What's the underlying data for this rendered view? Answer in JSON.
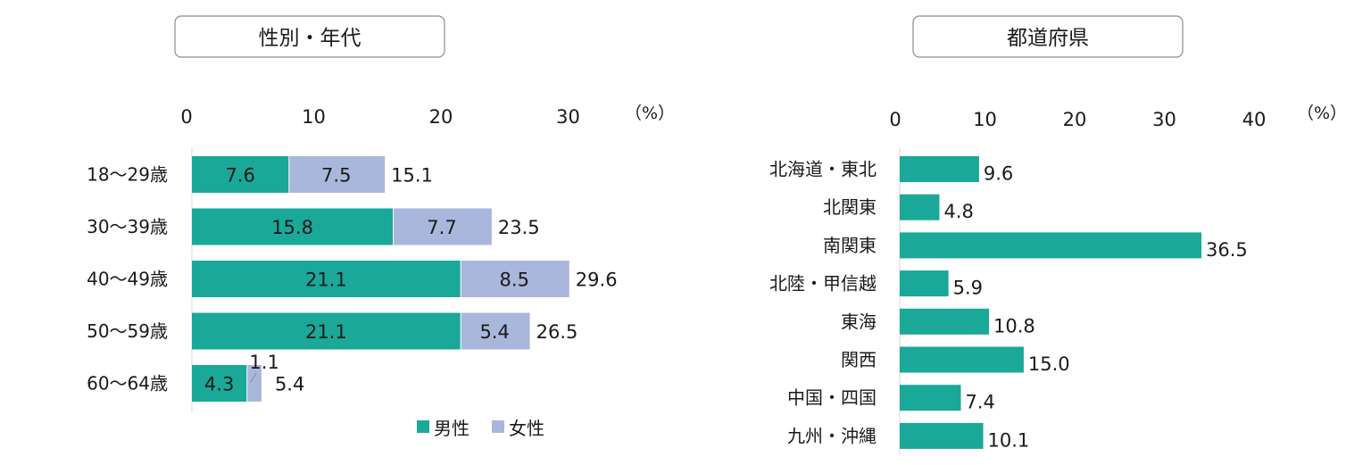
{
  "colors": {
    "male": "#1aa899",
    "female": "#a9b7dc",
    "single": "#1aa899"
  },
  "chart_data": [
    {
      "type": "bar",
      "orientation": "horizontal",
      "stacked": true,
      "title": "性別・年代",
      "unit": "（%）",
      "xlim": [
        0,
        30
      ],
      "xticks": [
        0,
        10,
        20,
        30
      ],
      "categories": [
        "18～29歳",
        "30～39歳",
        "40～49歳",
        "50～59歳",
        "60～64歳"
      ],
      "series": [
        {
          "name": "男性",
          "values": [
            7.6,
            15.8,
            21.1,
            21.1,
            4.3
          ]
        },
        {
          "name": "女性",
          "values": [
            7.5,
            7.7,
            8.5,
            5.4,
            1.1
          ]
        }
      ],
      "totals": [
        "15.1",
        "23.5",
        "29.6",
        "26.5",
        "5.4"
      ],
      "labels": {
        "male": [
          "7.6",
          "15.8",
          "21.1",
          "21.1",
          "4.3"
        ],
        "female": [
          "7.5",
          "7.7",
          "8.5",
          "5.4",
          "1.1"
        ]
      },
      "legend": [
        "男性",
        "女性"
      ],
      "legend_position": "bottom"
    },
    {
      "type": "bar",
      "orientation": "horizontal",
      "title": "都道府県",
      "unit": "（%）",
      "xlim": [
        0,
        40
      ],
      "xticks": [
        0,
        10,
        20,
        30,
        40
      ],
      "categories": [
        "北海道・東北",
        "北関東",
        "南関東",
        "北陸・甲信越",
        "東海",
        "関西",
        "中国・四国",
        "九州・沖縄"
      ],
      "values": [
        9.6,
        4.8,
        36.5,
        5.9,
        10.8,
        15.0,
        7.4,
        10.1
      ],
      "labels": [
        "9.6",
        "4.8",
        "36.5",
        "5.9",
        "10.8",
        "15.0",
        "7.4",
        "10.1"
      ]
    }
  ]
}
